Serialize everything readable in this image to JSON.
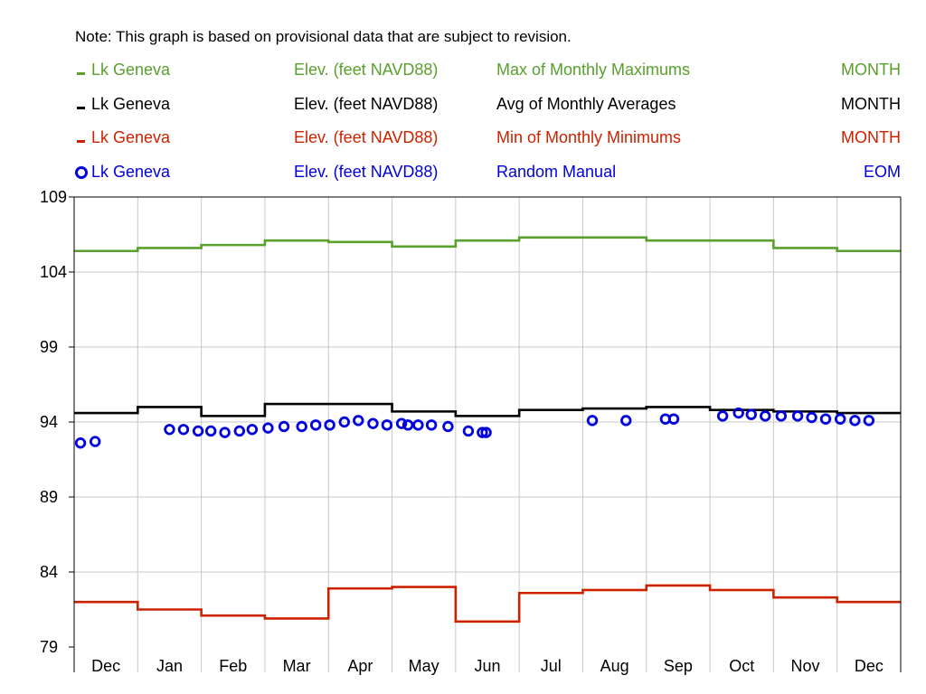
{
  "note": "Note: This graph is based on provisional data that are subject to revision.",
  "legend": [
    {
      "site": "Lk Geneva",
      "parameter": "Elev. (feet NAVD88)",
      "statistic": "Max of Monthly Maximums",
      "interval": "MONTH",
      "color": "#5aa02c",
      "symbol": "line"
    },
    {
      "site": "Lk Geneva",
      "parameter": "Elev. (feet NAVD88)",
      "statistic": "Avg of Monthly Averages",
      "interval": "MONTH",
      "color": "#000000",
      "symbol": "line"
    },
    {
      "site": "Lk Geneva",
      "parameter": "Elev. (feet NAVD88)",
      "statistic": "Min of Monthly Minimums",
      "interval": "MONTH",
      "color": "#cc2200",
      "symbol": "line"
    },
    {
      "site": "Lk Geneva",
      "parameter": "Elev. (feet NAVD88)",
      "statistic": "Random Manual",
      "interval": "EOM",
      "color": "#0000dd",
      "symbol": "circle"
    }
  ],
  "chart_data": {
    "type": "line",
    "categories": [
      "Dec",
      "Jan",
      "Feb",
      "Mar",
      "Apr",
      "May",
      "Jun",
      "Jul",
      "Aug",
      "Sep",
      "Oct",
      "Nov",
      "Dec"
    ],
    "ylim": [
      79,
      109
    ],
    "yticks": [
      "109",
      "104",
      "99",
      "94",
      "89",
      "84",
      "79"
    ],
    "grid": true,
    "legend_position": "top",
    "step_series": [
      {
        "name": "Max of Monthly Maximums",
        "color": "#5aa02c",
        "values": [
          105.4,
          105.6,
          105.8,
          106.1,
          106.0,
          105.7,
          106.1,
          106.3,
          106.3,
          106.1,
          106.1,
          105.6,
          105.4
        ]
      },
      {
        "name": "Avg of Monthly Averages",
        "color": "#000000",
        "values": [
          94.6,
          95.0,
          94.4,
          95.2,
          95.2,
          94.7,
          94.4,
          94.8,
          94.9,
          95.0,
          94.8,
          94.7,
          94.6
        ]
      },
      {
        "name": "Min of Monthly Minimums",
        "color": "#cc2200",
        "values": [
          82.0,
          81.5,
          81.1,
          80.9,
          82.9,
          83.0,
          80.7,
          82.6,
          82.8,
          83.1,
          82.8,
          82.3,
          82.0
        ]
      }
    ],
    "points_series": {
      "name": "Random Manual",
      "color": "#0000dd",
      "points": [
        {
          "m": 0.1,
          "y": 92.6
        },
        {
          "m": 0.33,
          "y": 92.7
        },
        {
          "m": 1.5,
          "y": 93.5
        },
        {
          "m": 1.72,
          "y": 93.5
        },
        {
          "m": 1.95,
          "y": 93.4
        },
        {
          "m": 2.15,
          "y": 93.4
        },
        {
          "m": 2.37,
          "y": 93.3
        },
        {
          "m": 2.6,
          "y": 93.4
        },
        {
          "m": 2.8,
          "y": 93.5
        },
        {
          "m": 3.05,
          "y": 93.6
        },
        {
          "m": 3.3,
          "y": 93.7
        },
        {
          "m": 3.58,
          "y": 93.7
        },
        {
          "m": 3.8,
          "y": 93.8
        },
        {
          "m": 4.02,
          "y": 93.8
        },
        {
          "m": 4.25,
          "y": 94.0
        },
        {
          "m": 4.47,
          "y": 94.1
        },
        {
          "m": 4.7,
          "y": 93.9
        },
        {
          "m": 4.92,
          "y": 93.8
        },
        {
          "m": 5.15,
          "y": 93.9
        },
        {
          "m": 5.25,
          "y": 93.8
        },
        {
          "m": 5.41,
          "y": 93.8
        },
        {
          "m": 5.62,
          "y": 93.8
        },
        {
          "m": 5.88,
          "y": 93.7
        },
        {
          "m": 6.2,
          "y": 93.4
        },
        {
          "m": 6.42,
          "y": 93.3
        },
        {
          "m": 6.48,
          "y": 93.3
        },
        {
          "m": 8.15,
          "y": 94.1
        },
        {
          "m": 8.68,
          "y": 94.1
        },
        {
          "m": 9.3,
          "y": 94.2
        },
        {
          "m": 9.43,
          "y": 94.2
        },
        {
          "m": 10.2,
          "y": 94.4
        },
        {
          "m": 10.45,
          "y": 94.6
        },
        {
          "m": 10.65,
          "y": 94.5
        },
        {
          "m": 10.87,
          "y": 94.4
        },
        {
          "m": 11.12,
          "y": 94.4
        },
        {
          "m": 11.38,
          "y": 94.4
        },
        {
          "m": 11.6,
          "y": 94.3
        },
        {
          "m": 11.82,
          "y": 94.2
        },
        {
          "m": 12.05,
          "y": 94.2
        },
        {
          "m": 12.28,
          "y": 94.1
        },
        {
          "m": 12.5,
          "y": 94.1
        }
      ]
    }
  }
}
